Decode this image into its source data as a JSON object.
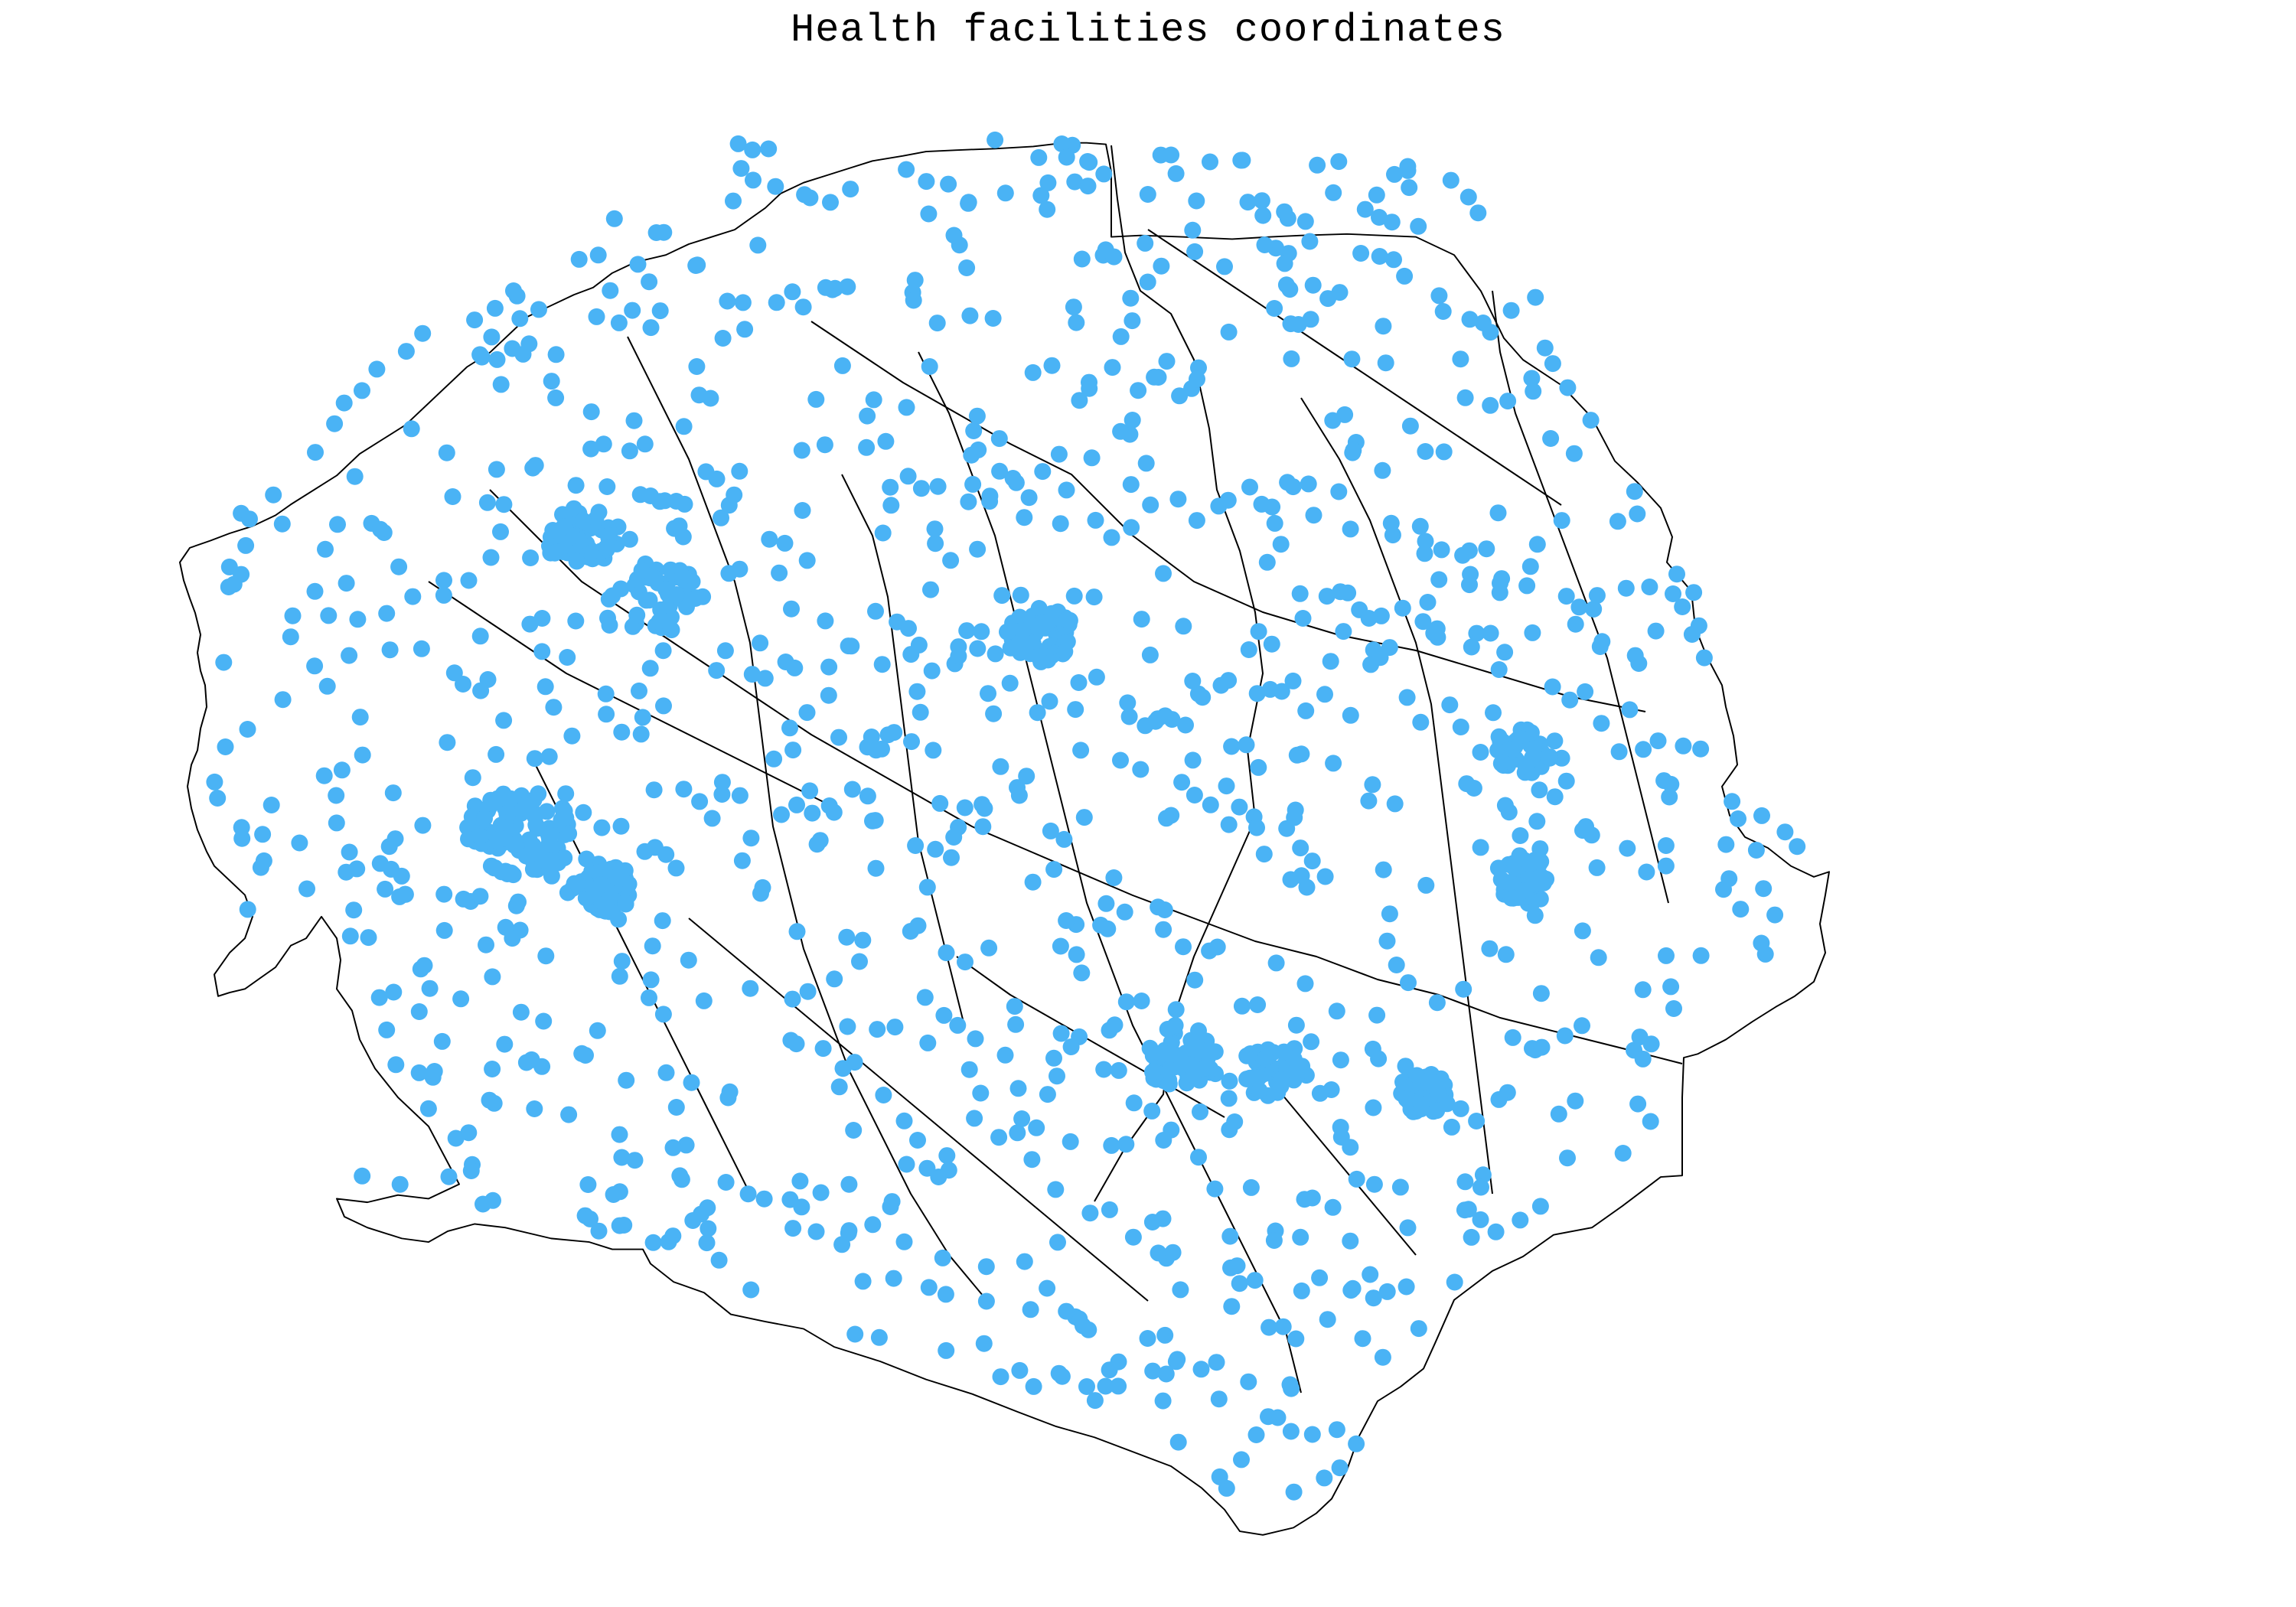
{
  "title": "Health facilities coordinates",
  "colors": {
    "point": "#4AB3F5",
    "outline": "#000000",
    "background": "#FFFFFF"
  },
  "map": {
    "country": "Sierra Leone",
    "layer_types": [
      "chiefdom-boundaries",
      "health-facility-points"
    ]
  }
}
